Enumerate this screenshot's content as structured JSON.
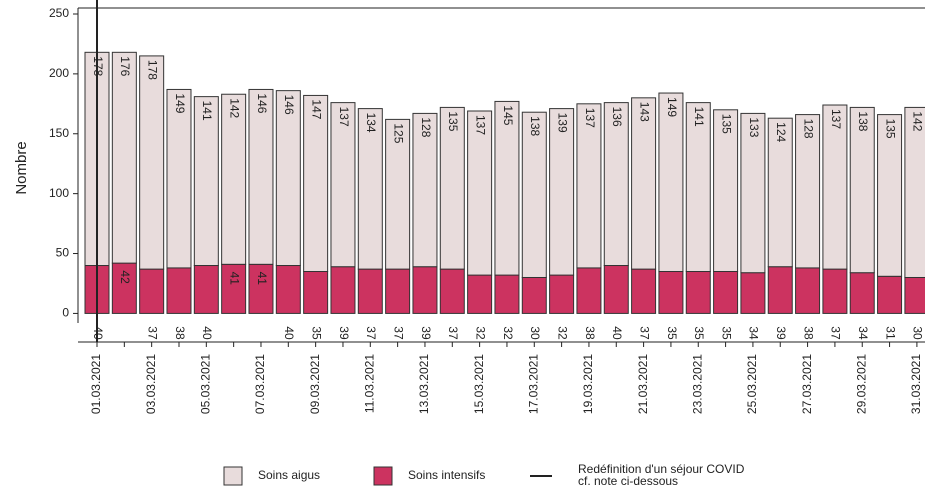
{
  "chart_data": {
    "type": "stacked_bar",
    "y_label": "Nombre",
    "categories": [
      "01.03.2021",
      null,
      "03.03.2021",
      null,
      "05.03.2021",
      null,
      "07.03.2021",
      null,
      "09.03.2021",
      null,
      "11.03.2021",
      null,
      "13.03.2021",
      null,
      "15.03.2021",
      null,
      "17.03.2021",
      null,
      "19.03.2021",
      null,
      "21.03.2021",
      null,
      "23.03.2021",
      null,
      "25.03.2021",
      null,
      "27.03.2021",
      null,
      "29.03.2021",
      null,
      "31.03.2021"
    ],
    "series": [
      {
        "name": "Soins intensifs",
        "color": "#cc3360",
        "values": [
          40,
          42,
          37,
          38,
          40,
          41,
          41,
          40,
          35,
          39,
          37,
          37,
          39,
          37,
          32,
          32,
          30,
          32,
          38,
          40,
          37,
          35,
          35,
          35,
          34,
          39,
          38,
          37,
          34,
          31,
          30
        ]
      },
      {
        "name": "Soins aigus",
        "color": "#e8dcdc",
        "values": [
          178,
          176,
          178,
          149,
          141,
          142,
          146,
          146,
          147,
          137,
          134,
          125,
          128,
          135,
          137,
          145,
          138,
          139,
          137,
          136,
          143,
          149,
          141,
          135,
          133,
          124,
          128,
          137,
          138,
          135,
          142
        ]
      }
    ],
    "vline": {
      "at": "01.03.2021",
      "color": "#222222",
      "label_lines": [
        "Redéfinition d'un séjour COVID",
        "cf. note ci-dessous"
      ]
    },
    "ylim": [
      -8,
      255
    ],
    "yticks": [
      0,
      50,
      100,
      150,
      200,
      250
    ]
  }
}
